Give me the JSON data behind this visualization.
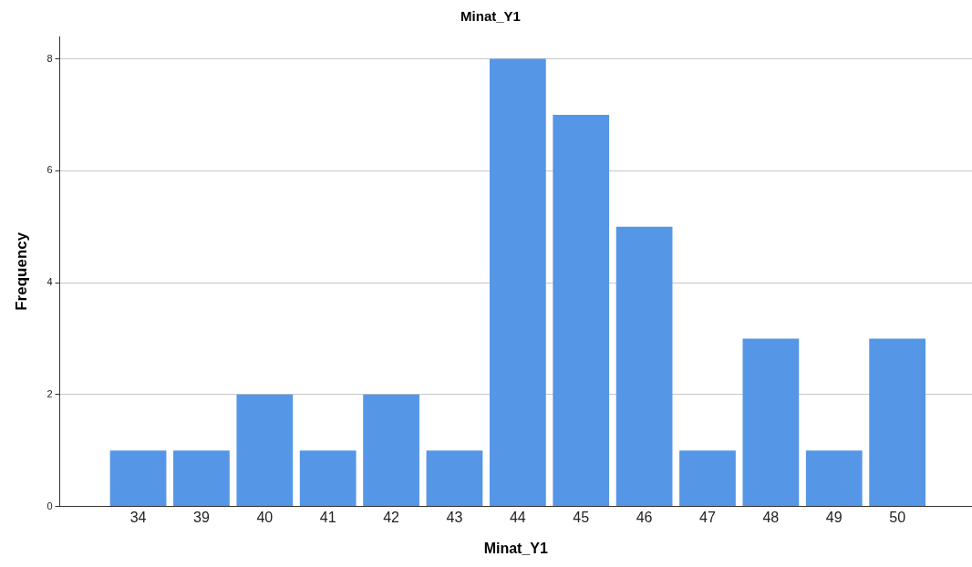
{
  "chart_data": {
    "type": "bar",
    "title": "Minat_Y1",
    "xlabel": "Minat_Y1",
    "ylabel": "Frequency",
    "categories": [
      "34",
      "39",
      "40",
      "41",
      "42",
      "43",
      "44",
      "45",
      "46",
      "47",
      "48",
      "49",
      "50"
    ],
    "values": [
      1,
      1,
      2,
      1,
      2,
      1,
      8,
      7,
      5,
      1,
      3,
      1,
      3
    ],
    "color": "#5596e6",
    "ylim": [
      0,
      8.4
    ],
    "yticks": [
      0,
      2,
      4,
      6,
      8
    ],
    "grid": "y",
    "legend": false
  }
}
